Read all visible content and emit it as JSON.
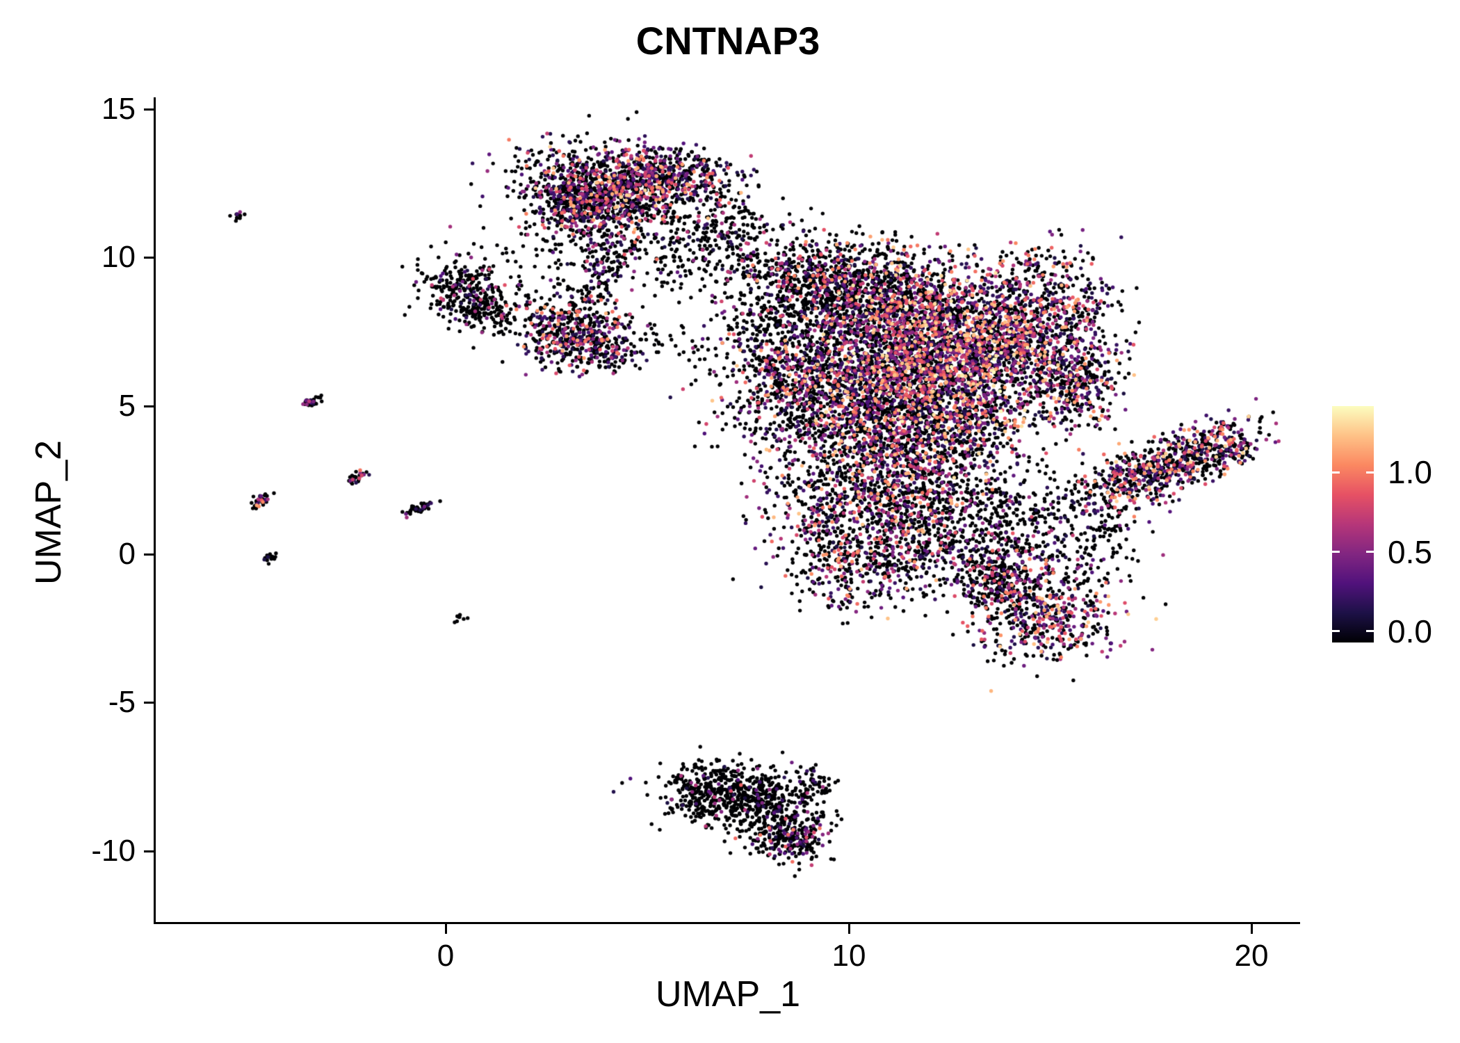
{
  "chart_data": {
    "type": "scatter",
    "title": "CNTNAP3",
    "xlabel": "UMAP_1",
    "ylabel": "UMAP_2",
    "xlim": [
      -7.2,
      21.2
    ],
    "ylim": [
      -12.4,
      15.4
    ],
    "xticks": [
      0,
      10,
      20
    ],
    "xtick_labels": [
      "0",
      "10",
      "20"
    ],
    "yticks": [
      15,
      10,
      5,
      0,
      -5,
      -10
    ],
    "ytick_labels": [
      "15",
      "10",
      "5",
      "0",
      "-5",
      "-10"
    ],
    "grid": false,
    "legend": {
      "position": "right",
      "tick_labels": [
        "1.0",
        "0.5",
        "0.0"
      ],
      "tick_values": [
        1.0,
        0.5,
        0.0
      ],
      "value_max": 1.35
    },
    "colormap": {
      "name": "magma",
      "stops": [
        "#000004",
        "#1d1147",
        "#51127c",
        "#822681",
        "#b63679",
        "#e65164",
        "#fb8861",
        "#fec287",
        "#fcfdbf"
      ]
    },
    "point_radius_px": 2.7,
    "random_seed": 7,
    "cluster_fields": [
      "cx",
      "cy",
      "sx",
      "sy",
      "rot_deg",
      "n",
      "frac_zero",
      "value_max"
    ],
    "clusters": [
      [
        4.2,
        12.4,
        1.1,
        0.65,
        -8,
        900,
        0.55,
        1.25
      ],
      [
        3.3,
        11.7,
        0.6,
        0.5,
        0,
        300,
        0.6,
        1.1
      ],
      [
        5.6,
        12.9,
        0.8,
        0.4,
        -12,
        260,
        0.55,
        1.15
      ],
      [
        4.5,
        12.1,
        1.6,
        1.0,
        0,
        220,
        0.82,
        0.9
      ],
      [
        6.3,
        10.7,
        0.6,
        0.6,
        0,
        110,
        0.85,
        0.8
      ],
      [
        4.2,
        10.1,
        0.5,
        0.55,
        0,
        130,
        0.7,
        1.0
      ],
      [
        3.6,
        9.0,
        0.4,
        0.6,
        0,
        60,
        0.75,
        1.0
      ],
      [
        7.0,
        11.4,
        0.35,
        0.5,
        0,
        45,
        0.85,
        0.7
      ],
      [
        2.3,
        9.9,
        0.6,
        0.5,
        0,
        35,
        0.9,
        0.6
      ],
      [
        0.4,
        9.0,
        0.55,
        0.45,
        0,
        230,
        0.85,
        0.9
      ],
      [
        0.9,
        8.1,
        0.5,
        0.35,
        0,
        120,
        0.8,
        0.9
      ],
      [
        1.8,
        8.4,
        0.5,
        0.4,
        0,
        40,
        0.9,
        0.6
      ],
      [
        3.2,
        7.5,
        0.65,
        0.6,
        0,
        460,
        0.6,
        1.15
      ],
      [
        4.0,
        6.8,
        0.4,
        0.35,
        0,
        100,
        0.6,
        1.0
      ],
      [
        5.7,
        7.0,
        0.8,
        0.6,
        0,
        45,
        0.88,
        0.7
      ],
      [
        9.7,
        9.0,
        1.2,
        0.8,
        -20,
        900,
        0.7,
        1.15
      ],
      [
        11.8,
        8.3,
        1.3,
        0.9,
        -15,
        1000,
        0.5,
        1.3
      ],
      [
        12.3,
        6.6,
        1.2,
        0.9,
        0,
        1100,
        0.42,
        1.35
      ],
      [
        10.4,
        6.3,
        1.3,
        1.0,
        0,
        900,
        0.55,
        1.25
      ],
      [
        8.6,
        5.6,
        0.9,
        1.1,
        0,
        500,
        0.6,
        1.2
      ],
      [
        10.6,
        4.2,
        1.2,
        0.9,
        0,
        700,
        0.6,
        1.2
      ],
      [
        12.6,
        4.6,
        1.0,
        0.8,
        0,
        600,
        0.55,
        1.3
      ],
      [
        14.3,
        7.3,
        0.9,
        0.9,
        30,
        550,
        0.5,
        1.25
      ],
      [
        15.2,
        6.2,
        0.6,
        0.9,
        0,
        300,
        0.55,
        1.2
      ],
      [
        15.9,
        5.6,
        0.5,
        0.7,
        0,
        150,
        0.6,
        1.2
      ],
      [
        14.5,
        9.2,
        0.9,
        0.6,
        30,
        220,
        0.6,
        1.1
      ],
      [
        15.8,
        8.4,
        0.5,
        0.5,
        0,
        100,
        0.6,
        1.1
      ],
      [
        8.2,
        8.0,
        0.8,
        1.2,
        0,
        250,
        0.75,
        1.0
      ],
      [
        9.9,
        1.8,
        1.0,
        1.1,
        0,
        500,
        0.65,
        1.2
      ],
      [
        11.6,
        2.2,
        0.9,
        0.9,
        0,
        400,
        0.6,
        1.2
      ],
      [
        10.2,
        -0.3,
        0.9,
        0.8,
        0,
        350,
        0.6,
        1.2
      ],
      [
        12.0,
        0.3,
        0.8,
        0.7,
        0,
        250,
        0.7,
        1.1
      ],
      [
        12.8,
        2.8,
        1.2,
        1.2,
        0,
        250,
        0.75,
        1.0
      ],
      [
        14.0,
        1.0,
        0.7,
        0.9,
        0,
        150,
        0.8,
        0.9
      ],
      [
        7.3,
        10.4,
        0.8,
        0.8,
        0,
        90,
        0.85,
        0.8
      ],
      [
        17.6,
        2.8,
        1.3,
        0.45,
        27,
        700,
        0.55,
        1.25
      ],
      [
        19.2,
        3.7,
        0.5,
        0.45,
        0,
        140,
        0.5,
        1.25
      ],
      [
        15.9,
        1.0,
        0.7,
        0.6,
        0,
        90,
        0.8,
        0.9
      ],
      [
        14.8,
        -1.9,
        0.9,
        0.85,
        0,
        550,
        0.55,
        1.25
      ],
      [
        13.8,
        -0.7,
        0.6,
        0.6,
        0,
        200,
        0.7,
        1.1
      ],
      [
        15.3,
        0.3,
        0.8,
        0.7,
        0,
        80,
        0.8,
        0.9
      ],
      [
        13.3,
        -0.9,
        0.5,
        0.5,
        0,
        80,
        0.75,
        1.0
      ],
      [
        7.0,
        -7.9,
        0.85,
        0.5,
        -12,
        360,
        0.92,
        0.8
      ],
      [
        8.1,
        -8.7,
        0.7,
        0.6,
        0,
        300,
        0.88,
        0.9
      ],
      [
        8.6,
        -9.6,
        0.45,
        0.4,
        0,
        200,
        0.8,
        1.0
      ],
      [
        9.1,
        -7.7,
        0.3,
        0.3,
        0,
        40,
        0.9,
        0.6
      ],
      [
        6.3,
        -8.3,
        0.5,
        0.45,
        0,
        120,
        0.92,
        0.7
      ],
      [
        -5.15,
        11.4,
        0.1,
        0.05,
        40,
        12,
        0.85,
        0.6
      ],
      [
        -3.35,
        5.1,
        0.18,
        0.07,
        40,
        30,
        0.7,
        1.0
      ],
      [
        -4.55,
        1.8,
        0.16,
        0.08,
        40,
        35,
        0.6,
        1.2
      ],
      [
        -2.15,
        2.6,
        0.16,
        0.07,
        40,
        30,
        0.7,
        1.0
      ],
      [
        -0.65,
        1.55,
        0.22,
        0.07,
        30,
        45,
        0.9,
        0.6
      ],
      [
        -4.4,
        -0.1,
        0.1,
        0.1,
        0,
        15,
        0.9,
        0.5
      ],
      [
        0.35,
        -2.1,
        0.07,
        0.07,
        0,
        8,
        0.9,
        0.4
      ],
      [
        6.0,
        9.6,
        0.9,
        0.5,
        0,
        40,
        0.9,
        0.6
      ]
    ]
  }
}
